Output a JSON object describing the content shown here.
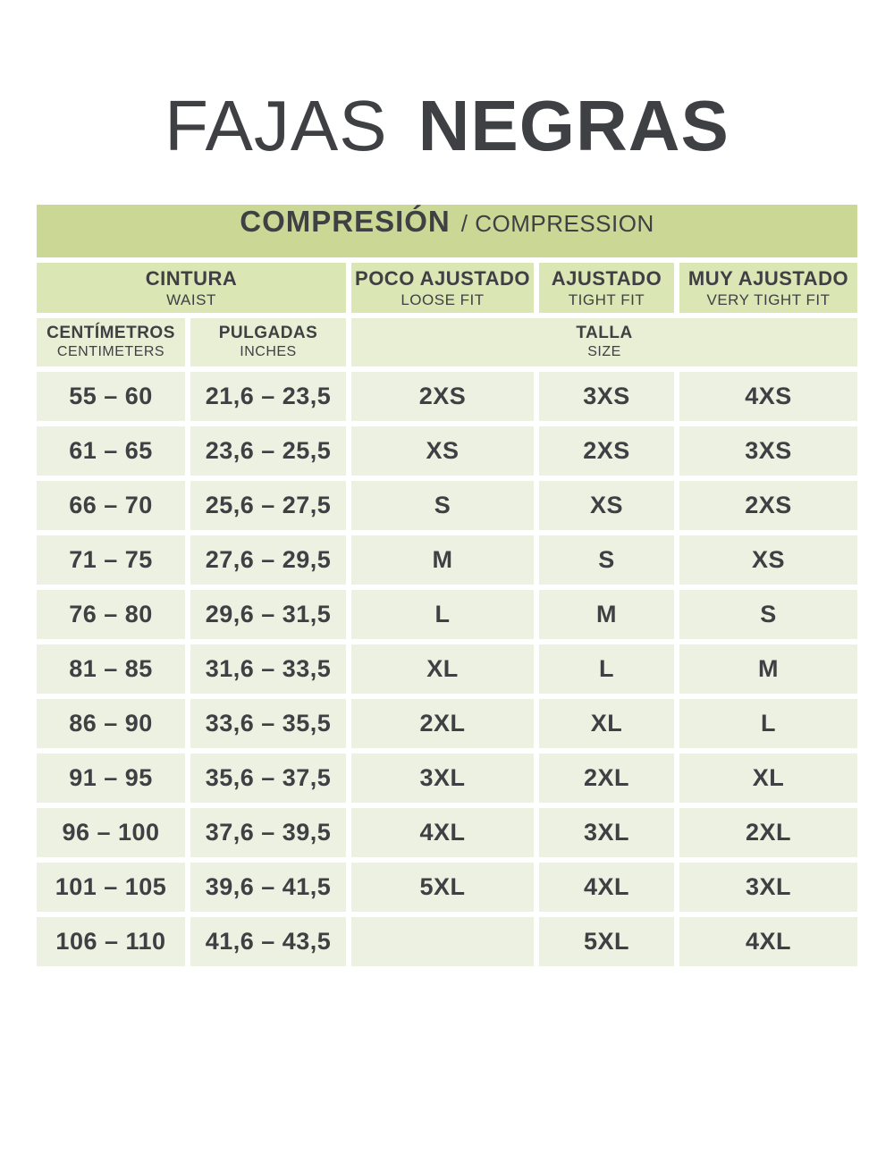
{
  "page": {
    "title_light": "FAJAS",
    "title_bold": "NEGRAS"
  },
  "colors": {
    "header_green": "#cbd795",
    "colhead_green": "#dbe6b5",
    "subhead_green": "#e9efd5",
    "row_green": "#edf1e2",
    "text_dark": "#3e4044"
  },
  "table": {
    "title_es": "COMPRESIÓN",
    "title_en": "/ COMPRESSION",
    "col_waist_es": "CINTURA",
    "col_waist_en": "WAIST",
    "col_loose_es": "POCO AJUSTADO",
    "col_loose_en": "LOOSE FIT",
    "col_tight_es": "AJUSTADO",
    "col_tight_en": "TIGHT FIT",
    "col_verytight_es": "MUY AJUSTADO",
    "col_verytight_en": "VERY TIGHT FIT",
    "sub_cm_es": "CENTÍMETROS",
    "sub_cm_en": "CENTIMETERS",
    "sub_in_es": "PULGADAS",
    "sub_in_en": "INCHES",
    "sub_size_es": "TALLA",
    "sub_size_en": "SIZE",
    "rows": [
      {
        "cm": "55 – 60",
        "inches": "21,6 – 23,5",
        "loose": "2XS",
        "tight": "3XS",
        "very_tight": "4XS"
      },
      {
        "cm": "61 – 65",
        "inches": "23,6 – 25,5",
        "loose": "XS",
        "tight": "2XS",
        "very_tight": "3XS"
      },
      {
        "cm": "66 – 70",
        "inches": "25,6 – 27,5",
        "loose": "S",
        "tight": "XS",
        "very_tight": "2XS"
      },
      {
        "cm": "71 – 75",
        "inches": "27,6 – 29,5",
        "loose": "M",
        "tight": "S",
        "very_tight": "XS"
      },
      {
        "cm": "76 – 80",
        "inches": "29,6 – 31,5",
        "loose": "L",
        "tight": "M",
        "very_tight": "S"
      },
      {
        "cm": "81 – 85",
        "inches": "31,6 – 33,5",
        "loose": "XL",
        "tight": "L",
        "very_tight": "M"
      },
      {
        "cm": "86 – 90",
        "inches": "33,6 – 35,5",
        "loose": "2XL",
        "tight": "XL",
        "very_tight": "L"
      },
      {
        "cm": "91 – 95",
        "inches": "35,6 – 37,5",
        "loose": "3XL",
        "tight": "2XL",
        "very_tight": "XL"
      },
      {
        "cm": "96 – 100",
        "inches": "37,6 – 39,5",
        "loose": "4XL",
        "tight": "3XL",
        "very_tight": "2XL"
      },
      {
        "cm": "101 – 105",
        "inches": "39,6 – 41,5",
        "loose": "5XL",
        "tight": "4XL",
        "very_tight": "3XL"
      },
      {
        "cm": "106 – 110",
        "inches": "41,6 – 43,5",
        "loose": "",
        "tight": "5XL",
        "very_tight": "4XL"
      }
    ]
  }
}
